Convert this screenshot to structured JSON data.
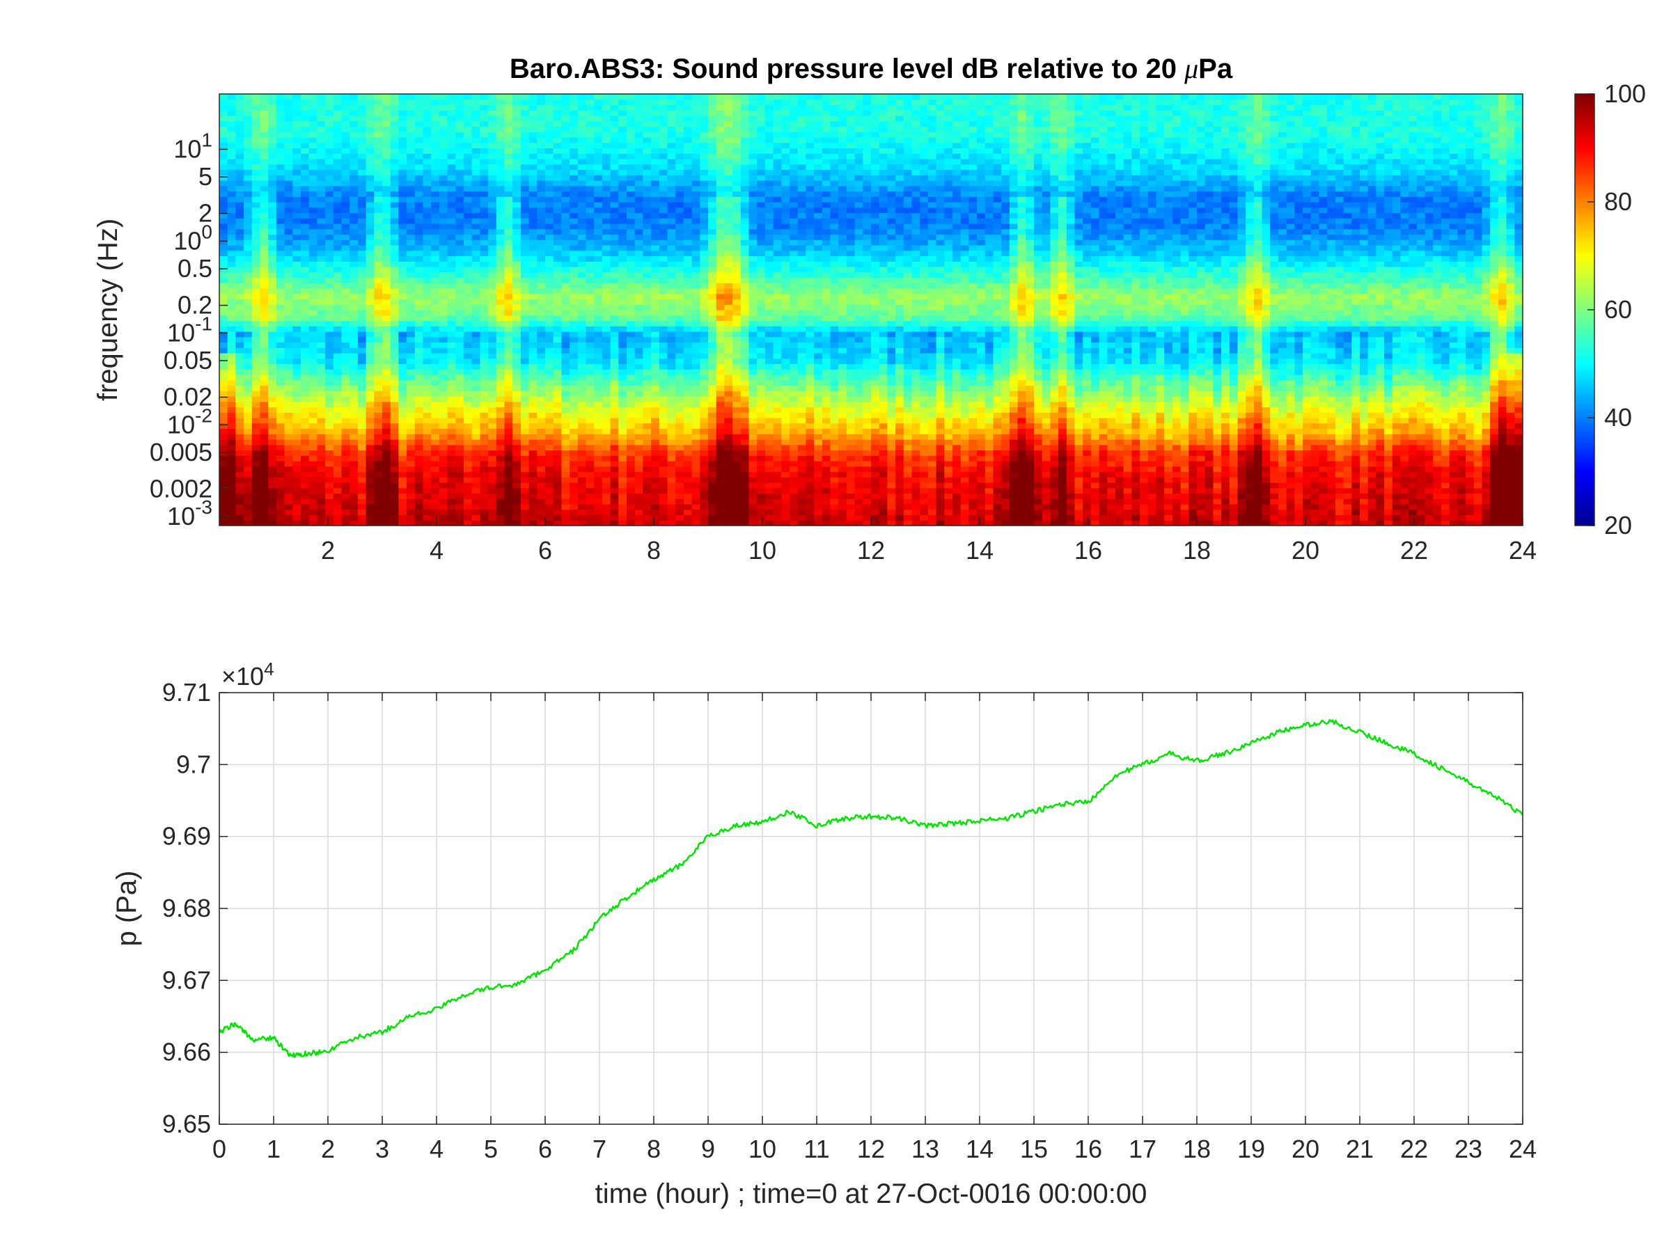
{
  "chart_data": [
    {
      "type": "heatmap",
      "title_prefix": "Baro.ABS3: Sound pressure level dB relative to 20 ",
      "title_greek": "μ",
      "title_suffix": "Pa",
      "ylabel": "frequency (Hz)",
      "xlim": [
        0,
        24
      ],
      "x_ticks": [
        "2",
        "4",
        "6",
        "8",
        "10",
        "12",
        "14",
        "16",
        "18",
        "20",
        "22",
        "24"
      ],
      "y_scale": "log",
      "ylim": [
        0.0008,
        40
      ],
      "y_ticks": [
        {
          "value": 10,
          "base": "10",
          "exp": "1"
        },
        {
          "value": 5,
          "label": "5"
        },
        {
          "value": 2,
          "label": "2"
        },
        {
          "value": 1,
          "base": "10",
          "exp": "0"
        },
        {
          "value": 0.5,
          "label": "0.5"
        },
        {
          "value": 0.2,
          "label": "0.2"
        },
        {
          "value": 0.1,
          "base": "10",
          "exp": "-1"
        },
        {
          "value": 0.05,
          "label": "0.05"
        },
        {
          "value": 0.02,
          "label": "0.02"
        },
        {
          "value": 0.01,
          "base": "10",
          "exp": "-2"
        },
        {
          "value": 0.005,
          "label": "0.005"
        },
        {
          "value": 0.002,
          "label": "0.002"
        },
        {
          "value": 0.001,
          "base": "10",
          "exp": "-3"
        }
      ],
      "colormap": "jet",
      "colorbar": {
        "min": 20,
        "max": 100,
        "ticks": [
          "20",
          "40",
          "60",
          "80",
          "100"
        ]
      },
      "band_levels_db": [
        {
          "f": 40,
          "db": 52
        },
        {
          "f": 15,
          "db": 52
        },
        {
          "f": 6,
          "db": 47
        },
        {
          "f": 3,
          "db": 40
        },
        {
          "f": 1.5,
          "db": 40
        },
        {
          "f": 0.8,
          "db": 45
        },
        {
          "f": 0.45,
          "db": 53
        },
        {
          "f": 0.25,
          "db": 62
        },
        {
          "f": 0.15,
          "db": 58
        },
        {
          "f": 0.1,
          "db": 45
        },
        {
          "f": 0.05,
          "db": 48
        },
        {
          "f": 0.03,
          "db": 57
        },
        {
          "f": 0.015,
          "db": 68
        },
        {
          "f": 0.008,
          "db": 76
        },
        {
          "f": 0.005,
          "db": 86
        },
        {
          "f": 0.003,
          "db": 90
        },
        {
          "f": 0.0015,
          "db": 92
        },
        {
          "f": 0.0008,
          "db": 94
        }
      ],
      "transient_events_hour": [
        0.8,
        3.0,
        5.3,
        9.2,
        9.5,
        14.8,
        15.5,
        19.1,
        23.6
      ]
    },
    {
      "type": "line",
      "xlabel": "time (hour) ; time=0 at 27-Oct-0016 00:00:00",
      "ylabel": "p (Pa)",
      "xlim": [
        0,
        24
      ],
      "ylim": [
        96500,
        97100
      ],
      "x_ticks": [
        "0",
        "1",
        "2",
        "3",
        "4",
        "5",
        "6",
        "7",
        "8",
        "9",
        "10",
        "11",
        "12",
        "13",
        "14",
        "15",
        "16",
        "17",
        "18",
        "19",
        "20",
        "21",
        "22",
        "23",
        "24"
      ],
      "y_ticks": [
        "9.65",
        "9.66",
        "9.67",
        "9.68",
        "9.69",
        "9.7",
        "9.71"
      ],
      "y_exponent_prefix": "×10",
      "y_exponent_power": "4",
      "grid": true,
      "line_color": "#00e000",
      "series": [
        {
          "x": [
            0,
            0.3,
            0.6,
            1.0,
            1.3,
            1.6,
            2.0,
            2.5,
            3.0,
            3.5,
            4.0,
            4.5,
            5.0,
            5.5,
            6.0,
            6.5,
            7.0,
            7.5,
            8.0,
            8.5,
            9.0,
            9.5,
            10.0,
            10.5,
            11.0,
            11.5,
            12.0,
            12.5,
            13.0,
            13.5,
            14.0,
            14.5,
            15.0,
            15.5,
            16.0,
            16.5,
            17.0,
            17.5,
            18.0,
            18.5,
            19.0,
            19.5,
            20.0,
            20.5,
            21.0,
            21.5,
            22.0,
            22.5,
            23.0,
            23.5,
            24.0
          ],
          "y": [
            96628,
            96640,
            96618,
            96620,
            96595,
            96598,
            96602,
            96620,
            96628,
            96650,
            96660,
            96680,
            96690,
            96695,
            96715,
            96740,
            96785,
            96815,
            96840,
            96860,
            96900,
            96915,
            96920,
            96935,
            96915,
            96925,
            96928,
            96925,
            96915,
            96918,
            96922,
            96925,
            96935,
            96945,
            96948,
            96985,
            97000,
            97015,
            97005,
            97015,
            97030,
            97045,
            97055,
            97060,
            97045,
            97030,
            97015,
            96995,
            96975,
            96955,
            96930
          ]
        }
      ]
    }
  ]
}
